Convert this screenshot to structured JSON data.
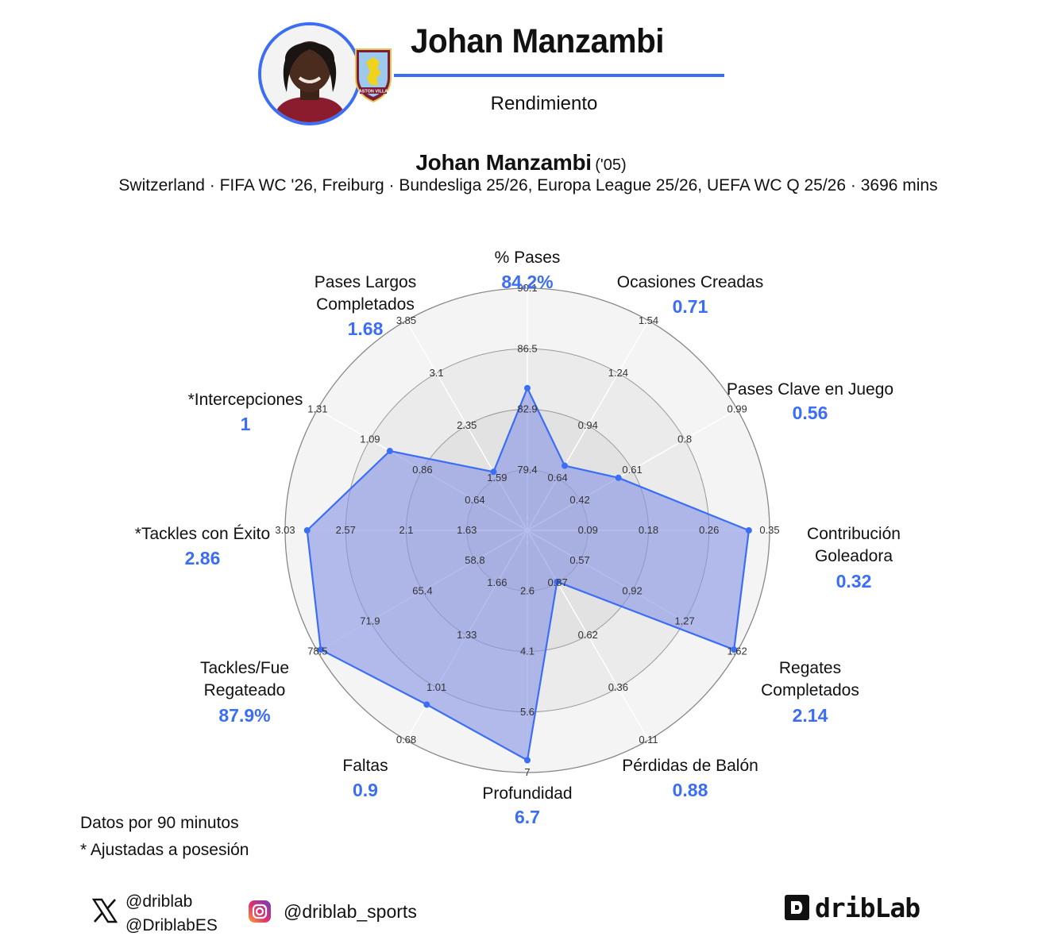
{
  "header": {
    "player_name": "Johan Manzambi",
    "subtitle": "Rendimiento",
    "club_crest_text": "ASTON VILLA"
  },
  "player_line": {
    "name": "Johan Manzambi",
    "year": "('05)",
    "competitions": "Switzerland · FIFA WC '26, Freiburg · Bundesliga 25/26, Europa League 25/26, UEFA WC Q 25/26 · 3696 mins"
  },
  "chart_data": {
    "type": "radar",
    "accent_color": "#3b6ef5",
    "fill_color": "#8796e3",
    "axes": [
      {
        "label": [
          "% Pases"
        ],
        "value_label": "84.2%",
        "value": 84.2,
        "ticks": [
          "79.4",
          "82.9",
          "86.5",
          "90.1"
        ],
        "min": 75.8,
        "max": 90.1
      },
      {
        "label": [
          "Ocasiones Creadas"
        ],
        "value_label": "0.71",
        "value": 0.71,
        "ticks": [
          "0.64",
          "0.94",
          "1.24",
          "1.54"
        ],
        "min": 0.34,
        "max": 1.54
      },
      {
        "label": [
          "Pases Clave en Juego"
        ],
        "value_label": "0.56",
        "value": 0.56,
        "ticks": [
          "0.42",
          "0.61",
          "0.8",
          "0.99"
        ],
        "min": 0.23,
        "max": 0.99
      },
      {
        "label": [
          "Contribución",
          "Goleadora"
        ],
        "value_label": "0.32",
        "value": 0.32,
        "ticks": [
          "0.09",
          "0.18",
          "0.26",
          "0.35"
        ],
        "min": 0.0,
        "max": 0.35
      },
      {
        "label": [
          "Regates",
          "Completados"
        ],
        "value_label": "2.14",
        "value": 2.14,
        "ticks": [
          "0.57",
          "0.92",
          "1.27",
          "1.62"
        ],
        "min": 0.22,
        "max": 1.62
      },
      {
        "label": [
          "Pérdidas de Balón"
        ],
        "value_label": "0.88",
        "value": 0.88,
        "ticks": [
          "0.87",
          "0.62",
          "0.36",
          "0.11"
        ],
        "min": 1.13,
        "max": 0.11
      },
      {
        "label": [
          "Profundidad"
        ],
        "value_label": "6.7",
        "value": 6.7,
        "ticks": [
          "2.6",
          "4.1",
          "5.6",
          "7"
        ],
        "min": 1.1,
        "max": 7.0
      },
      {
        "label": [
          "Faltas"
        ],
        "value_label": "0.9",
        "value": 0.9,
        "ticks": [
          "1.66",
          "1.33",
          "1.01",
          "0.68"
        ],
        "min": 1.98,
        "max": 0.68
      },
      {
        "label": [
          "Tackles/Fue",
          "Regateado"
        ],
        "value_label": "87.9%",
        "value": 87.9,
        "ticks": [
          "58.8",
          "65.4",
          "71.9",
          "78.5"
        ],
        "min": 52.2,
        "max": 78.5
      },
      {
        "label": [
          "*Tackles con Éxito"
        ],
        "value_label": "2.86",
        "value": 2.86,
        "ticks": [
          "1.63",
          "2.1",
          "2.57",
          "3.03"
        ],
        "min": 1.16,
        "max": 3.03
      },
      {
        "label": [
          "*Intercepciones"
        ],
        "value_label": "1",
        "value": 1.0,
        "ticks": [
          "0.64",
          "0.86",
          "1.09",
          "1.31"
        ],
        "min": 0.41,
        "max": 1.31
      },
      {
        "label": [
          "Pases Largos",
          "Completados"
        ],
        "value_label": "1.68",
        "value": 1.68,
        "ticks": [
          "1.59",
          "2.35",
          "3.1",
          "3.85"
        ],
        "min": 0.84,
        "max": 3.85
      }
    ]
  },
  "notes": {
    "per90": "Datos por 90 minutos",
    "adjusted": "* Ajustadas a posesión"
  },
  "socials": {
    "twitter_1": "@driblab",
    "twitter_2": "@DriblabES",
    "instagram": "@driblab_sports",
    "brand": "dribLab"
  }
}
